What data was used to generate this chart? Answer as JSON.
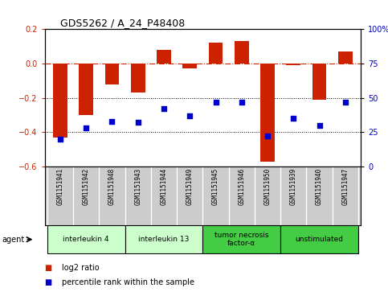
{
  "title": "GDS5262 / A_24_P48408",
  "samples": [
    "GSM1151941",
    "GSM1151942",
    "GSM1151948",
    "GSM1151943",
    "GSM1151944",
    "GSM1151949",
    "GSM1151945",
    "GSM1151946",
    "GSM1151950",
    "GSM1151939",
    "GSM1151940",
    "GSM1151947"
  ],
  "log2_ratio": [
    -0.43,
    -0.3,
    -0.12,
    -0.17,
    0.08,
    -0.03,
    0.12,
    0.13,
    -0.57,
    -0.01,
    -0.21,
    0.07
  ],
  "percentile": [
    20,
    28,
    33,
    32,
    42,
    37,
    47,
    47,
    22,
    35,
    30,
    47
  ],
  "bar_color": "#cc2200",
  "dot_color": "#0000cc",
  "ylim_left": [
    -0.6,
    0.2
  ],
  "ylim_right": [
    0,
    100
  ],
  "yticks_left": [
    -0.6,
    -0.4,
    -0.2,
    0.0,
    0.2
  ],
  "yticks_right": [
    0,
    25,
    50,
    75,
    100
  ],
  "hline_y": 0.0,
  "dotted_lines": [
    -0.2,
    -0.4
  ],
  "groups": [
    {
      "label": "interleukin 4",
      "start": 0,
      "end": 2,
      "color": "#ccffcc"
    },
    {
      "label": "interleukin 13",
      "start": 3,
      "end": 5,
      "color": "#ccffcc"
    },
    {
      "label": "tumor necrosis\nfactor-α",
      "start": 6,
      "end": 8,
      "color": "#44cc44"
    },
    {
      "label": "unstimulated",
      "start": 9,
      "end": 11,
      "color": "#44cc44"
    }
  ],
  "agent_label": "agent",
  "legend_bar": "log2 ratio",
  "legend_dot": "percentile rank within the sample",
  "background_color": "#ffffff",
  "label_bg": "#cccccc",
  "bar_width": 0.55
}
